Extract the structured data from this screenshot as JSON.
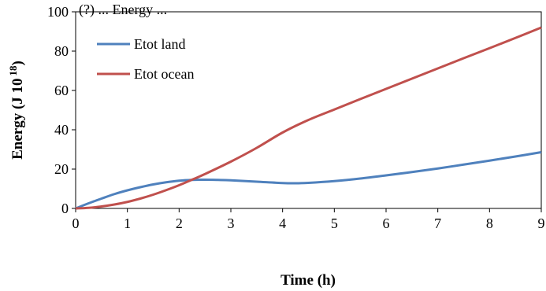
{
  "chart_data": {
    "type": "line",
    "title": "(?) ... Energy ...",
    "xlabel": "Time (h)",
    "ylabel_main": "Energy (J 10",
    "ylabel_sup": "18",
    "ylabel_close": ")",
    "xlim": [
      0,
      9
    ],
    "ylim": [
      0,
      100
    ],
    "xticks": [
      "0",
      "1",
      "2",
      "3",
      "4",
      "5",
      "6",
      "7",
      "8",
      "9"
    ],
    "yticks": [
      "0",
      "20",
      "40",
      "60",
      "80",
      "100"
    ],
    "grid": false,
    "legend_position": "top-left",
    "series": [
      {
        "name": "Etot land",
        "color": "#4f81bd",
        "x": [
          0,
          0.25,
          0.5,
          0.75,
          1,
          1.25,
          1.5,
          1.75,
          2,
          2.25,
          2.5,
          2.75,
          3,
          3.5,
          4,
          4.25,
          4.5,
          5,
          5.5,
          6,
          6.5,
          7,
          7.5,
          8,
          8.5,
          9
        ],
        "y": [
          0,
          2.6,
          5.0,
          7.3,
          9.2,
          10.8,
          12.2,
          13.3,
          14.1,
          14.5,
          14.6,
          14.5,
          14.3,
          13.6,
          12.9,
          12.8,
          13.0,
          13.9,
          15.2,
          16.8,
          18.5,
          20.3,
          22.3,
          24.3,
          26.4,
          28.6
        ]
      },
      {
        "name": "Etot ocean",
        "color": "#c0504d",
        "x": [
          0,
          0.25,
          0.5,
          0.75,
          1,
          1.25,
          1.5,
          1.75,
          2,
          2.25,
          2.5,
          3,
          3.5,
          4,
          4.5,
          5,
          5.5,
          6,
          6.5,
          7,
          7.5,
          8,
          8.5,
          9
        ],
        "y": [
          0,
          0.3,
          1.0,
          2.0,
          3.3,
          5.0,
          7.0,
          9.3,
          11.8,
          14.6,
          17.5,
          23.8,
          30.8,
          38.6,
          45.0,
          50.3,
          55.6,
          60.8,
          66.0,
          71.2,
          76.4,
          81.5,
          86.7,
          92.0
        ]
      }
    ]
  }
}
